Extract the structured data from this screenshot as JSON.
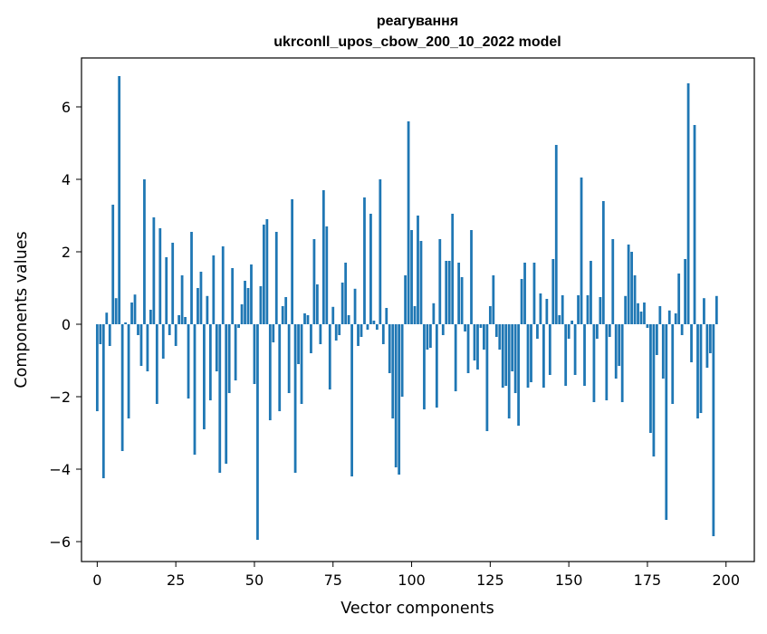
{
  "chart_data": {
    "type": "bar",
    "title_line1": "реагування",
    "title_line2": "ukrconll_upos_cbow_200_10_2022 model",
    "xlabel": "Vector components",
    "ylabel": "Components values",
    "xlim": [
      -5,
      209
    ],
    "ylim": [
      -6.55,
      7.35
    ],
    "x_ticks": [
      0,
      25,
      50,
      75,
      100,
      125,
      150,
      175,
      200
    ],
    "y_ticks": [
      -6,
      -4,
      -2,
      0,
      2,
      4,
      6
    ],
    "y_tick_labels": [
      "−6",
      "−4",
      "−2",
      "0",
      "2",
      "4",
      "6"
    ],
    "bar_color": "#1f77b4",
    "grid": false,
    "values": [
      -2.4,
      -0.55,
      -4.25,
      0.32,
      -0.6,
      3.3,
      0.72,
      6.85,
      -3.5,
      0.05,
      -2.6,
      0.6,
      0.82,
      -0.3,
      -1.15,
      4.0,
      -1.3,
      0.4,
      2.95,
      -2.2,
      2.65,
      -0.95,
      1.85,
      -0.3,
      2.25,
      -0.6,
      0.25,
      1.35,
      0.2,
      -2.05,
      2.55,
      -3.6,
      1.0,
      1.45,
      -2.9,
      0.78,
      -2.1,
      1.9,
      -1.3,
      -4.1,
      2.15,
      -3.85,
      -1.9,
      1.55,
      -1.55,
      -0.1,
      0.55,
      1.2,
      1.0,
      1.65,
      -1.65,
      -5.95,
      1.05,
      2.75,
      2.9,
      -2.65,
      -0.5,
      2.55,
      -2.4,
      0.5,
      0.75,
      -1.9,
      3.45,
      -4.1,
      -1.1,
      -2.2,
      0.3,
      0.25,
      -0.8,
      2.35,
      1.1,
      -0.55,
      3.7,
      2.7,
      -1.8,
      0.48,
      -0.45,
      -0.3,
      1.15,
      1.7,
      0.25,
      -4.2,
      0.98,
      -0.6,
      -0.35,
      3.5,
      -0.15,
      3.05,
      0.1,
      -0.15,
      4.0,
      -0.55,
      0.45,
      -1.35,
      -2.6,
      -3.95,
      -4.15,
      -2.0,
      1.35,
      5.6,
      2.6,
      0.5,
      3.0,
      2.3,
      -2.35,
      -0.7,
      -0.65,
      0.58,
      -2.3,
      2.35,
      -0.3,
      1.75,
      1.75,
      3.05,
      -1.85,
      1.7,
      1.3,
      -0.2,
      -1.35,
      2.6,
      -1.0,
      -1.25,
      -0.1,
      -0.7,
      -2.95,
      0.5,
      1.35,
      -0.35,
      -0.7,
      -1.75,
      -1.7,
      -2.6,
      -1.3,
      -1.9,
      -2.8,
      1.25,
      1.7,
      -1.75,
      -1.6,
      1.7,
      -0.4,
      0.85,
      -1.75,
      0.7,
      -1.4,
      1.8,
      4.95,
      0.25,
      0.8,
      -1.7,
      -0.4,
      0.1,
      -1.4,
      0.8,
      4.05,
      -1.7,
      0.8,
      1.75,
      -2.15,
      -0.4,
      0.75,
      3.4,
      -2.1,
      -0.35,
      2.35,
      -1.5,
      -1.15,
      -2.15,
      0.78,
      2.2,
      2.0,
      1.35,
      0.58,
      0.35,
      0.6,
      -0.1,
      -3.0,
      -3.65,
      -0.85,
      0.5,
      -1.5,
      -5.4,
      0.38,
      -2.2,
      0.3,
      1.4,
      -0.3,
      1.8,
      6.65,
      -1.05,
      5.5,
      -2.6,
      -2.45,
      0.72,
      -1.2,
      -0.8,
      -5.85,
      0.78
    ]
  }
}
